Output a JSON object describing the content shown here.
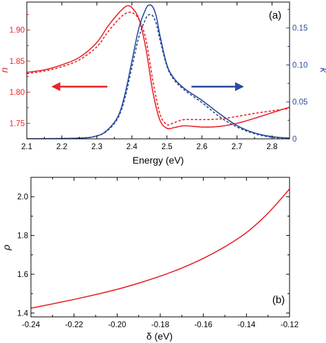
{
  "chart_data": [
    {
      "type": "line",
      "panel_label": "(a)",
      "xlabel": "Energy (eV)",
      "xlim": [
        2.1,
        2.85
      ],
      "x_ticks": [
        2.1,
        2.2,
        2.3,
        2.4,
        2.5,
        2.6,
        2.7,
        2.8
      ],
      "x_tick_labels": [
        "2.1",
        "2.2",
        "2.3",
        "2.4",
        "2.5",
        "2.6",
        "2.7",
        "2.8"
      ],
      "y_left": {
        "label": "n",
        "color": "#e8252b",
        "lim": [
          1.725,
          1.945
        ],
        "ticks": [
          1.75,
          1.8,
          1.85,
          1.9
        ],
        "tick_labels": [
          "1.75",
          "1.80",
          "1.85",
          "1.90"
        ]
      },
      "y_right": {
        "label": "k",
        "color": "#2b4a9c",
        "lim": [
          0,
          0.185
        ],
        "ticks": [
          0,
          0.05,
          0.1,
          0.15
        ],
        "tick_labels": [
          "0",
          "0.05",
          "0.10",
          "0.15"
        ]
      },
      "series": [
        {
          "axis": "left",
          "style": "solid",
          "color": "#e8252b",
          "x": [
            2.1,
            2.15,
            2.2,
            2.25,
            2.3,
            2.33,
            2.36,
            2.38,
            2.39,
            2.4,
            2.42,
            2.44,
            2.46,
            2.48,
            2.5,
            2.52,
            2.55,
            2.6,
            2.65,
            2.7,
            2.75,
            2.8,
            2.85
          ],
          "y": [
            1.832,
            1.836,
            1.844,
            1.856,
            1.88,
            1.905,
            1.926,
            1.937,
            1.939,
            1.936,
            1.918,
            1.87,
            1.8,
            1.755,
            1.742,
            1.743,
            1.746,
            1.744,
            1.745,
            1.75,
            1.758,
            1.767,
            1.776
          ]
        },
        {
          "axis": "left",
          "style": "dashed",
          "color": "#e8252b",
          "x": [
            2.1,
            2.15,
            2.2,
            2.25,
            2.3,
            2.33,
            2.36,
            2.38,
            2.4,
            2.42,
            2.44,
            2.46,
            2.48,
            2.5,
            2.52,
            2.55,
            2.6,
            2.65,
            2.7,
            2.75,
            2.8,
            2.85
          ],
          "y": [
            1.83,
            1.834,
            1.841,
            1.852,
            1.873,
            1.896,
            1.916,
            1.926,
            1.928,
            1.917,
            1.885,
            1.818,
            1.765,
            1.748,
            1.751,
            1.756,
            1.756,
            1.757,
            1.761,
            1.766,
            1.77,
            1.774
          ]
        },
        {
          "axis": "right",
          "style": "solid",
          "color": "#2b4a9c",
          "x": [
            2.1,
            2.25,
            2.3,
            2.33,
            2.36,
            2.38,
            2.4,
            2.42,
            2.44,
            2.45,
            2.46,
            2.47,
            2.48,
            2.5,
            2.52,
            2.55,
            2.6,
            2.65,
            2.7,
            2.75,
            2.8,
            2.85
          ],
          "y": [
            0,
            0.001,
            0.004,
            0.012,
            0.03,
            0.06,
            0.105,
            0.15,
            0.176,
            0.181,
            0.178,
            0.165,
            0.14,
            0.1,
            0.082,
            0.068,
            0.052,
            0.034,
            0.018,
            0.008,
            0.003,
            0.001
          ]
        },
        {
          "axis": "right",
          "style": "dashed",
          "color": "#2b4a9c",
          "x": [
            2.1,
            2.25,
            2.3,
            2.33,
            2.36,
            2.38,
            2.4,
            2.42,
            2.44,
            2.45,
            2.46,
            2.47,
            2.48,
            2.5,
            2.52,
            2.55,
            2.6,
            2.65,
            2.7,
            2.75,
            2.8,
            2.85
          ],
          "y": [
            0,
            0.001,
            0.004,
            0.011,
            0.028,
            0.055,
            0.097,
            0.138,
            0.163,
            0.168,
            0.166,
            0.155,
            0.134,
            0.098,
            0.08,
            0.066,
            0.049,
            0.03,
            0.016,
            0.007,
            0.002,
            0.001
          ]
        }
      ],
      "arrows": [
        {
          "color": "#e8252b",
          "direction": "left",
          "x_from": 2.33,
          "x_to": 2.17,
          "y_left": 1.809
        },
        {
          "color": "#2b4a9c",
          "direction": "right",
          "x_from": 2.57,
          "x_to": 2.72,
          "y_left": 1.809
        }
      ]
    },
    {
      "type": "line",
      "panel_label": "(b)",
      "xlabel": "δ (eV)",
      "ylabel": "ρ",
      "xlim": [
        -0.24,
        -0.12
      ],
      "ylim": [
        1.38,
        2.1
      ],
      "x_ticks": [
        -0.24,
        -0.22,
        -0.2,
        -0.18,
        -0.16,
        -0.14,
        -0.12
      ],
      "x_tick_labels": [
        "-0.24",
        "-0.22",
        "-0.20",
        "-0.18",
        "-0.16",
        "-0.14",
        "-0.12"
      ],
      "y_ticks": [
        1.4,
        1.6,
        1.8,
        2.0
      ],
      "y_tick_labels": [
        "1.4",
        "1.6",
        "1.8",
        "2.0"
      ],
      "series": [
        {
          "style": "solid",
          "color": "#e8252b",
          "x": [
            -0.24,
            -0.23,
            -0.22,
            -0.21,
            -0.2,
            -0.19,
            -0.18,
            -0.17,
            -0.16,
            -0.15,
            -0.14,
            -0.13,
            -0.12
          ],
          "y": [
            1.425,
            1.447,
            1.47,
            1.495,
            1.522,
            1.554,
            1.59,
            1.632,
            1.682,
            1.742,
            1.815,
            1.915,
            2.04
          ]
        }
      ]
    }
  ]
}
